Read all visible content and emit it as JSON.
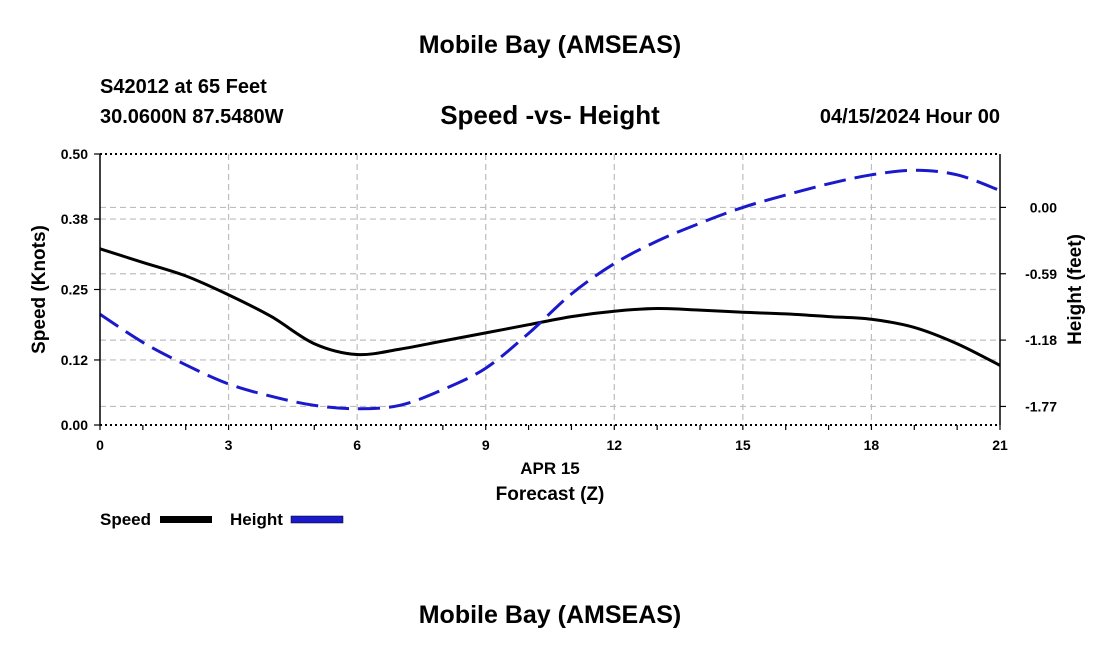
{
  "header": {
    "title": "Mobile Bay (AMSEAS)",
    "station": "S42012 at 65 Feet",
    "coords": "30.0600N  87.5480W",
    "datetime": "04/15/2024 Hour 00"
  },
  "footer": {
    "title": "Mobile Bay (AMSEAS)"
  },
  "legend": {
    "speed_label": "Speed",
    "height_label": "Height"
  },
  "colors": {
    "speed": "#000000",
    "height": "#1a1acc",
    "grid": "#bdbdbd"
  },
  "chart_data": {
    "type": "line",
    "title": "Speed -vs- Height",
    "xlabel": "Forecast (Z)",
    "x_date_label": "APR 15",
    "ylabel": "Speed (Knots)",
    "y2label": "Height (feet)",
    "xlim": [
      0,
      21
    ],
    "ylim": [
      0,
      0.5
    ],
    "y2lim": [
      -1.935,
      0.475
    ],
    "x_ticks": [
      "0",
      "3",
      "6",
      "9",
      "12",
      "15",
      "18",
      "21"
    ],
    "y_ticks": [
      "0.00",
      "0.12",
      "0.25",
      "0.38",
      "0.50"
    ],
    "y2_ticks": [
      "-1.77",
      "-1.18",
      "-0.59",
      "0.00"
    ],
    "grid": true,
    "series": [
      {
        "name": "Speed",
        "axis": "left",
        "style": "solid",
        "x": [
          0,
          1,
          2,
          3,
          4,
          5,
          6,
          7,
          8,
          9,
          10,
          11,
          12,
          13,
          14,
          15,
          16,
          17,
          18,
          19,
          20,
          21
        ],
        "values": [
          0.325,
          0.3,
          0.275,
          0.24,
          0.2,
          0.15,
          0.13,
          0.14,
          0.155,
          0.17,
          0.185,
          0.2,
          0.21,
          0.215,
          0.212,
          0.208,
          0.205,
          0.2,
          0.195,
          0.18,
          0.15,
          0.11
        ]
      },
      {
        "name": "Height",
        "axis": "right",
        "style": "dashed",
        "x": [
          0,
          1,
          2,
          3,
          4,
          5,
          6,
          7,
          8,
          9,
          10,
          11,
          12,
          13,
          14,
          15,
          16,
          17,
          18,
          19,
          20,
          21
        ],
        "values": [
          -0.95,
          -1.2,
          -1.4,
          -1.57,
          -1.68,
          -1.76,
          -1.79,
          -1.76,
          -1.62,
          -1.43,
          -1.12,
          -0.77,
          -0.5,
          -0.3,
          -0.14,
          0.0,
          0.11,
          0.21,
          0.29,
          0.33,
          0.29,
          0.15
        ]
      }
    ]
  }
}
